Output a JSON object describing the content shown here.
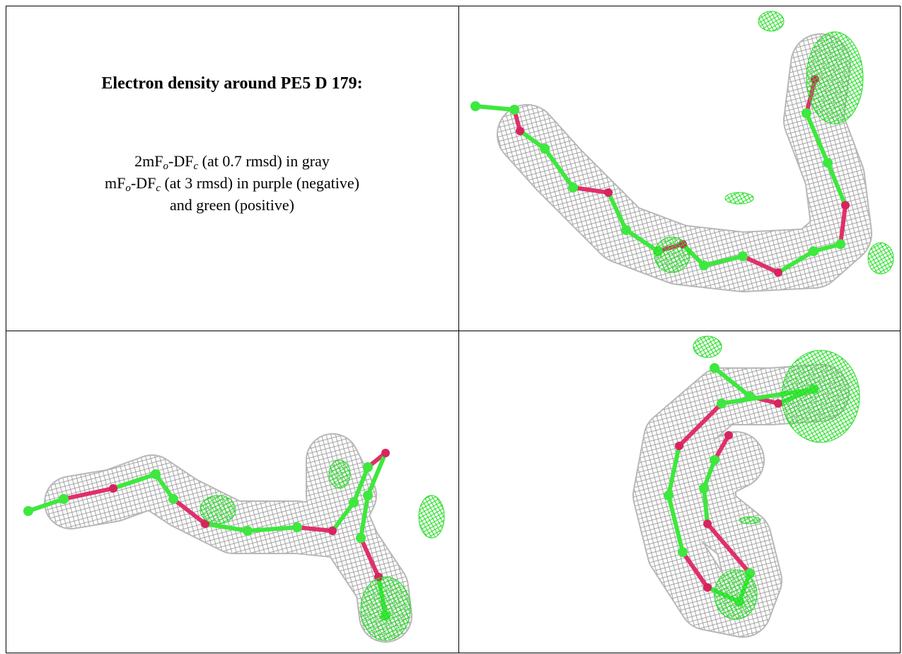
{
  "caption": {
    "title": "Electron density around PE5 D 179:",
    "lines": [
      [
        "2mF",
        "o",
        "-DF",
        "c",
        " (at 0.7 rmsd) in gray"
      ],
      [
        "mF",
        "o",
        "-DF",
        "c",
        " (at 3 rmsd) in purple (negative)"
      ],
      [
        "and green (positive)"
      ]
    ]
  }
}
